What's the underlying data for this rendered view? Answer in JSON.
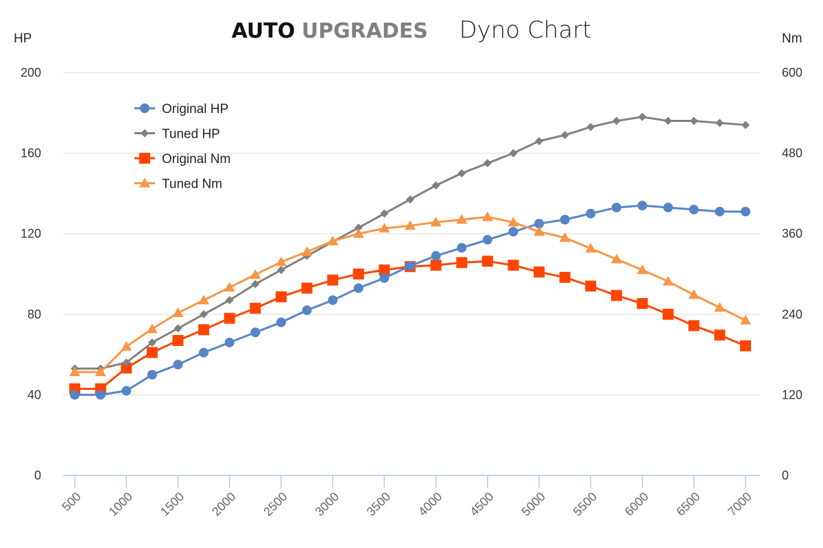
{
  "title": {
    "brand_primary": "AUTO",
    "brand_secondary": "UPGRADES",
    "text": "Dyno Chart"
  },
  "chart_data": {
    "type": "line",
    "title": "Dyno Chart",
    "ylabel_left": "HP",
    "ylabel_right": "Nm",
    "ylim_left": [
      0,
      200
    ],
    "ylim_right": [
      0,
      600
    ],
    "yticks_left": [
      0,
      40,
      80,
      120,
      160,
      200
    ],
    "yticks_right": [
      0,
      120,
      240,
      360,
      480,
      600
    ],
    "xticks": [
      500,
      1000,
      1500,
      2000,
      2500,
      3000,
      3500,
      4000,
      4500,
      5000,
      5500,
      6000,
      6500,
      7000
    ],
    "x": [
      500,
      750,
      1000,
      1250,
      1500,
      1750,
      2000,
      2250,
      2500,
      2750,
      3000,
      3250,
      3500,
      3750,
      4000,
      4250,
      4500,
      4750,
      5000,
      5250,
      5500,
      5750,
      6000,
      6250,
      6500,
      6750,
      7000
    ],
    "grid": true,
    "legend_position": "top-left",
    "series": [
      {
        "name": "Original HP",
        "axis": "left",
        "marker": "circle",
        "color": "#5585c5",
        "values": [
          40,
          40,
          42,
          50,
          55,
          61,
          66,
          71,
          76,
          82,
          87,
          93,
          98,
          104,
          109,
          113,
          117,
          121,
          125,
          127,
          130,
          133,
          134,
          133,
          132,
          131,
          131
        ]
      },
      {
        "name": "Tuned HP",
        "axis": "left",
        "marker": "diamond",
        "color": "#808080",
        "values": [
          53,
          53,
          56,
          66,
          73,
          80,
          87,
          95,
          102,
          109,
          116,
          123,
          130,
          137,
          144,
          150,
          155,
          160,
          166,
          169,
          173,
          176,
          178,
          176,
          176,
          175,
          174
        ]
      },
      {
        "name": "Original Nm",
        "axis": "right",
        "marker": "square",
        "color": "#ff4500",
        "values": [
          129,
          129,
          160,
          183,
          201,
          217,
          234,
          249,
          266,
          279,
          291,
          300,
          306,
          311,
          313,
          317,
          319,
          313,
          303,
          295,
          282,
          268,
          256,
          240,
          223,
          209,
          193
        ]
      },
      {
        "name": "Tuned Nm",
        "axis": "right",
        "marker": "triangle",
        "color": "#f79646",
        "values": [
          154,
          154,
          192,
          218,
          242,
          261,
          280,
          299,
          318,
          333,
          349,
          360,
          368,
          372,
          377,
          381,
          385,
          377,
          363,
          354,
          338,
          322,
          306,
          289,
          269,
          250,
          231
        ]
      }
    ]
  }
}
